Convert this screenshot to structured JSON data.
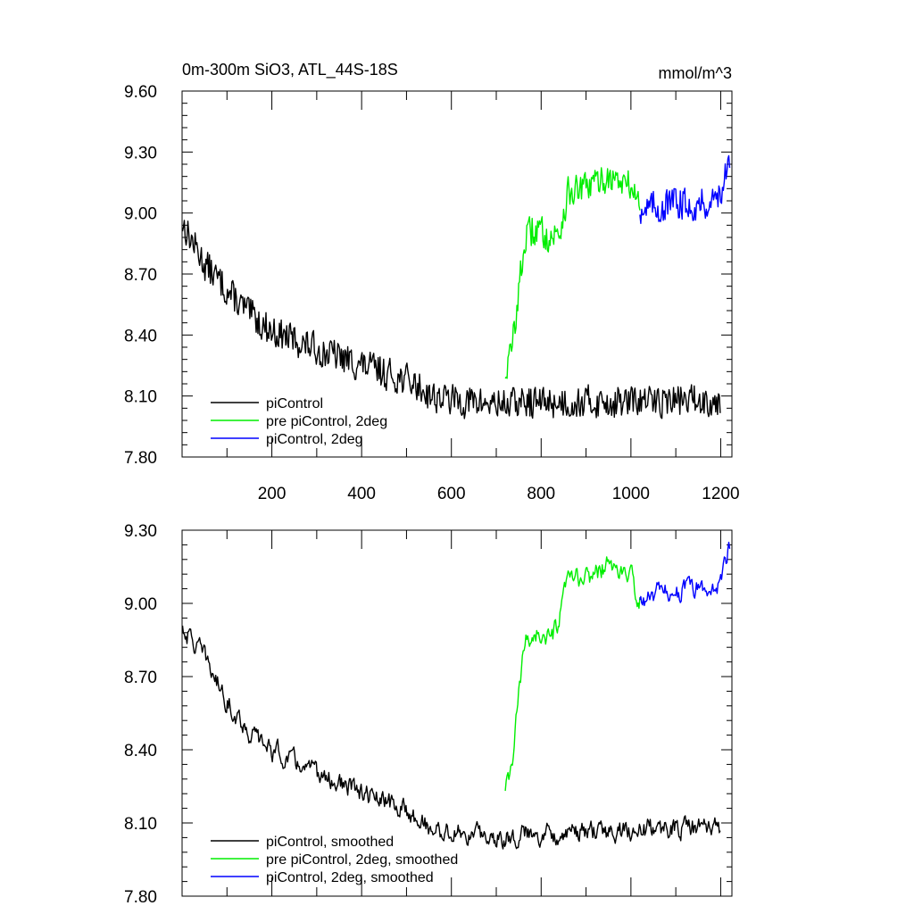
{
  "chart_data": [
    {
      "type": "line",
      "title": "0m-300m SiO3, ATL_44S-18S",
      "units": "mmol/m^3",
      "xlim": [
        0,
        1225
      ],
      "ylim": [
        7.8,
        9.6
      ],
      "x_ticks": [
        200,
        400,
        600,
        800,
        1000,
        1200
      ],
      "y_ticks": [
        "7.80",
        "8.10",
        "8.40",
        "8.70",
        "9.00",
        "9.30",
        "9.60"
      ],
      "legend_position": "bottom-left",
      "series": [
        {
          "name": "piControl",
          "color": "#000000",
          "x_range": [
            1,
            1200
          ],
          "keypoints": [
            [
              1,
              8.95
            ],
            [
              50,
              8.75
            ],
            [
              100,
              8.62
            ],
            [
              150,
              8.5
            ],
            [
              200,
              8.42
            ],
            [
              300,
              8.33
            ],
            [
              400,
              8.25
            ],
            [
              500,
              8.18
            ],
            [
              560,
              8.1
            ],
            [
              600,
              8.08
            ],
            [
              700,
              8.06
            ],
            [
              800,
              8.07
            ],
            [
              900,
              8.07
            ],
            [
              1000,
              8.07
            ],
            [
              1100,
              8.08
            ],
            [
              1200,
              8.08
            ]
          ],
          "noise": 0.07
        },
        {
          "name": "pre piControl, 2deg",
          "color": "#00ee00",
          "x_range": [
            720,
            1020
          ],
          "keypoints": [
            [
              720,
              8.22
            ],
            [
              735,
              8.33
            ],
            [
              750,
              8.62
            ],
            [
              765,
              8.88
            ],
            [
              790,
              8.92
            ],
            [
              820,
              8.88
            ],
            [
              840,
              8.9
            ],
            [
              860,
              9.1
            ],
            [
              900,
              9.12
            ],
            [
              950,
              9.18
            ],
            [
              1000,
              9.13
            ],
            [
              1020,
              9.05
            ]
          ],
          "noise": 0.07
        },
        {
          "name": "piControl, 2deg",
          "color": "#0000ff",
          "x_range": [
            1020,
            1220
          ],
          "keypoints": [
            [
              1020,
              9.02
            ],
            [
              1060,
              9.03
            ],
            [
              1100,
              9.05
            ],
            [
              1150,
              9.04
            ],
            [
              1190,
              9.07
            ],
            [
              1220,
              9.22
            ]
          ],
          "noise": 0.07
        }
      ]
    },
    {
      "type": "line",
      "title": "",
      "xlim": [
        0,
        1225
      ],
      "ylim": [
        7.8,
        9.3
      ],
      "y_ticks": [
        "7.80",
        "8.10",
        "8.40",
        "8.70",
        "9.00",
        "9.30"
      ],
      "legend_position": "bottom-left",
      "series": [
        {
          "name": "piControl, smoothed",
          "color": "#000000",
          "x_range": [
            1,
            1200
          ],
          "keypoints": [
            [
              1,
              8.9
            ],
            [
              50,
              8.78
            ],
            [
              100,
              8.6
            ],
            [
              150,
              8.47
            ],
            [
              200,
              8.4
            ],
            [
              300,
              8.3
            ],
            [
              400,
              8.22
            ],
            [
              500,
              8.15
            ],
            [
              560,
              8.07
            ],
            [
              600,
              8.06
            ],
            [
              700,
              8.04
            ],
            [
              800,
              8.06
            ],
            [
              900,
              8.06
            ],
            [
              1000,
              8.07
            ],
            [
              1100,
              8.08
            ],
            [
              1200,
              8.08
            ]
          ],
          "noise": 0.035
        },
        {
          "name": "pre piControl, 2deg, smoothed",
          "color": "#00ee00",
          "x_range": [
            720,
            1020
          ],
          "keypoints": [
            [
              720,
              8.22
            ],
            [
              735,
              8.33
            ],
            [
              750,
              8.62
            ],
            [
              765,
              8.85
            ],
            [
              790,
              8.88
            ],
            [
              820,
              8.84
            ],
            [
              840,
              8.92
            ],
            [
              860,
              9.1
            ],
            [
              900,
              9.1
            ],
            [
              950,
              9.16
            ],
            [
              1000,
              9.1
            ],
            [
              1020,
              9.02
            ]
          ],
          "noise": 0.035
        },
        {
          "name": "piControl, 2deg, smoothed",
          "color": "#0000ff",
          "x_range": [
            1020,
            1220
          ],
          "keypoints": [
            [
              1020,
              9.0
            ],
            [
              1060,
              9.04
            ],
            [
              1100,
              9.05
            ],
            [
              1150,
              9.06
            ],
            [
              1190,
              9.05
            ],
            [
              1220,
              9.24
            ]
          ],
          "noise": 0.035
        }
      ]
    }
  ]
}
